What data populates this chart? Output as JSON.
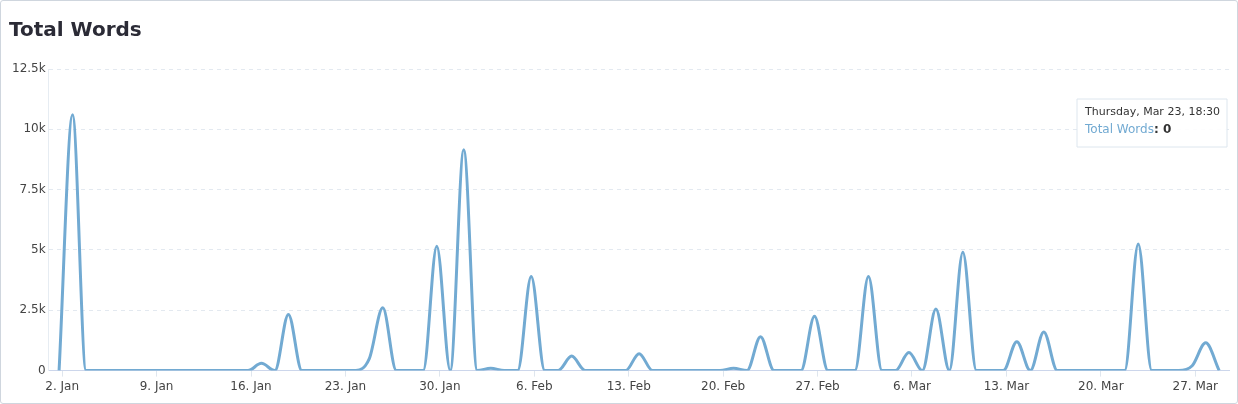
{
  "chart_data": {
    "type": "line",
    "title": "Total Words",
    "x": [
      "--01-01T18:30",
      "--01-02T18:30",
      "--01-03T18:30",
      "--01-04T18:30",
      "--01-05T18:30",
      "--01-06T18:30",
      "--01-07T18:30",
      "--01-08T18:30",
      "--01-09T18:30",
      "--01-10T18:30",
      "--01-11T18:30",
      "--01-12T18:30",
      "--01-13T18:30",
      "--01-14T18:30",
      "--01-15T18:30",
      "--01-16T18:30",
      "--01-17T18:30",
      "--01-18T18:30",
      "--01-19T18:30",
      "--01-20T18:30",
      "--01-21T18:30",
      "--01-22T18:30",
      "--01-23T18:30",
      "--01-24T18:30",
      "--01-25T18:30",
      "--01-26T18:30",
      "--01-27T18:30",
      "--01-28T18:30",
      "--01-29T18:30",
      "--01-30T18:30",
      "--01-31T18:30",
      "--02-01T18:30",
      "--02-02T18:30",
      "--02-03T18:30",
      "--02-04T18:30",
      "--02-05T18:30",
      "--02-06T18:30",
      "--02-07T18:30",
      "--02-08T18:30",
      "--02-09T18:30",
      "--02-10T18:30",
      "--02-11T18:30",
      "--02-12T18:30",
      "--02-13T18:30",
      "--02-14T18:30",
      "--02-15T18:30",
      "--02-16T18:30",
      "--02-17T18:30",
      "--02-18T18:30",
      "--02-19T18:30",
      "--02-20T18:30",
      "--02-21T18:30",
      "--02-22T18:30",
      "--02-23T18:30",
      "--02-24T18:30",
      "--02-25T18:30",
      "--02-26T18:30",
      "--02-27T18:30",
      "--02-28T18:30",
      "--03-01T18:30",
      "--03-02T18:30",
      "--03-03T18:30",
      "--03-04T18:30",
      "--03-05T18:30",
      "--03-06T18:30",
      "--03-07T18:30",
      "--03-08T18:30",
      "--03-09T18:30",
      "--03-10T18:30",
      "--03-11T18:30",
      "--03-12T18:30",
      "--03-13T18:30",
      "--03-14T18:30",
      "--03-15T18:30",
      "--03-16T18:30",
      "--03-17T18:30",
      "--03-18T18:30",
      "--03-19T18:30",
      "--03-20T18:30",
      "--03-21T18:30",
      "--03-22T18:30",
      "--03-23T18:30",
      "--03-24T18:30",
      "--03-25T18:30",
      "--03-26T18:30",
      "--03-27T18:30",
      "--03-28T18:30"
    ],
    "series": [
      {
        "color": "#72aad2",
        "values": [
          0,
          10600,
          0,
          0,
          0,
          0,
          0,
          0,
          0,
          0,
          0,
          0,
          0,
          0,
          0,
          300,
          0,
          2330,
          0,
          0,
          0,
          0,
          0,
          500,
          2600,
          0,
          0,
          0,
          5150,
          0,
          9150,
          0,
          100,
          0,
          0,
          3900,
          0,
          0,
          600,
          0,
          0,
          0,
          0,
          700,
          0,
          0,
          0,
          0,
          0,
          0,
          100,
          0,
          1400,
          0,
          0,
          0,
          2250,
          0,
          0,
          0,
          3900,
          0,
          0,
          750,
          0,
          2550,
          0,
          4900,
          0,
          0,
          0,
          1200,
          0,
          1600,
          0,
          0,
          0,
          0,
          0,
          0,
          5250,
          0,
          0,
          0,
          200,
          1150,
          0
        ]
      }
    ],
    "xlim": [
      "--01-01T00:00",
      "--03-29T12:00"
    ],
    "xticks": [
      {
        "value": "--01-02",
        "label": "2. Jan"
      },
      {
        "value": "--01-09",
        "label": "9. Jan"
      },
      {
        "value": "--01-16",
        "label": "16. Jan"
      },
      {
        "value": "--01-23",
        "label": "23. Jan"
      },
      {
        "value": "--01-30",
        "label": "30. Jan"
      },
      {
        "value": "--02-06",
        "label": "6. Feb"
      },
      {
        "value": "--02-13",
        "label": "13. Feb"
      },
      {
        "value": "--02-20",
        "label": "20. Feb"
      },
      {
        "value": "--02-27",
        "label": "27. Feb"
      },
      {
        "value": "--03-06",
        "label": "6. Mar"
      },
      {
        "value": "--03-13",
        "label": "13. Mar"
      },
      {
        "value": "--03-20",
        "label": "20. Mar"
      },
      {
        "value": "--03-27",
        "label": "27. Mar"
      }
    ],
    "ylim": [
      0,
      12500
    ],
    "yticks": [
      0,
      {
        "value": 2500,
        "label": "2.5k"
      },
      {
        "value": 5000,
        "label": "5k"
      },
      {
        "value": 7500,
        "label": "7.5k"
      },
      {
        "value": 10000,
        "label": "10k"
      },
      {
        "value": 12500,
        "label": "12.5k"
      }
    ],
    "grid": "y",
    "legend": false,
    "marker": "none",
    "line_style": "solid",
    "annotations": [
      "Thursday, Mar 23, 18:30",
      "Total Words: 0"
    ]
  }
}
